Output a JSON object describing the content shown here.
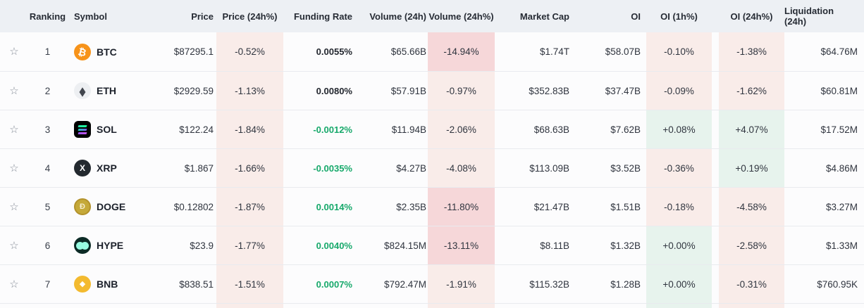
{
  "colors": {
    "header_bg": "#edf0f4",
    "row_bg": "#fcfcfd",
    "separator": "#e9ebef",
    "cell_pink": "#f9ece9",
    "cell_pink_strong": "#f6d7d9",
    "cell_green": "#e7f3ed",
    "funding_green": "#17a96b",
    "text": "#30353f",
    "symbol_color": "#1c212b",
    "btc_orange": "#f7931a",
    "bnb_yellow": "#f3ba2f",
    "hype_mint": "#98fce2"
  },
  "icons": {
    "star": "☆",
    "btc": "₿",
    "eth": "◆",
    "sol": "",
    "xrp": "X",
    "doge": "Ð",
    "hype": "",
    "bnb": "◆"
  },
  "table": {
    "columns": [
      {
        "id": "ranking",
        "label": "Ranking"
      },
      {
        "id": "symbol",
        "label": "Symbol"
      },
      {
        "id": "price",
        "label": "Price"
      },
      {
        "id": "price_24h_pct",
        "label": "Price (24h%)"
      },
      {
        "id": "funding_rate",
        "label": "Funding Rate"
      },
      {
        "id": "volume_24h",
        "label": "Volume (24h)"
      },
      {
        "id": "volume_24h_pct",
        "label": "Volume (24h%)"
      },
      {
        "id": "market_cap",
        "label": "Market Cap"
      },
      {
        "id": "oi",
        "label": "OI"
      },
      {
        "id": "oi_1h_pct",
        "label": "OI (1h%)"
      },
      {
        "id": "oi_24h_pct",
        "label": "OI (24h%)"
      },
      {
        "id": "liquidation_24h",
        "label": "Liquidation (24h)"
      }
    ],
    "rows": [
      {
        "id": "btc",
        "ranking": "1",
        "symbol": "BTC",
        "price": "$87295.1",
        "price_24h_pct": {
          "text": "-0.52%",
          "bg": "pink"
        },
        "funding_rate": {
          "text": "0.0055%",
          "color": "dark"
        },
        "volume_24h": "$65.66B",
        "volume_24h_pct": {
          "text": "-14.94%",
          "bg": "pink2"
        },
        "market_cap": "$1.74T",
        "oi": "$58.07B",
        "oi_1h_pct": {
          "text": "-0.10%",
          "bg": "pink"
        },
        "oi_24h_pct": {
          "text": "-1.38%",
          "bg": "pink"
        },
        "liquidation_24h": "$64.76M"
      },
      {
        "id": "eth",
        "ranking": "2",
        "symbol": "ETH",
        "price": "$2929.59",
        "price_24h_pct": {
          "text": "-1.13%",
          "bg": "pink"
        },
        "funding_rate": {
          "text": "0.0080%",
          "color": "dark"
        },
        "volume_24h": "$57.91B",
        "volume_24h_pct": {
          "text": "-0.97%",
          "bg": "pink"
        },
        "market_cap": "$352.83B",
        "oi": "$37.47B",
        "oi_1h_pct": {
          "text": "-0.09%",
          "bg": "pink"
        },
        "oi_24h_pct": {
          "text": "-1.62%",
          "bg": "pink"
        },
        "liquidation_24h": "$60.81M"
      },
      {
        "id": "sol",
        "ranking": "3",
        "symbol": "SOL",
        "price": "$122.24",
        "price_24h_pct": {
          "text": "-1.84%",
          "bg": "pink"
        },
        "funding_rate": {
          "text": "-0.0012%",
          "color": "green"
        },
        "volume_24h": "$11.94B",
        "volume_24h_pct": {
          "text": "-2.06%",
          "bg": "pink"
        },
        "market_cap": "$68.63B",
        "oi": "$7.62B",
        "oi_1h_pct": {
          "text": "+0.08%",
          "bg": "green"
        },
        "oi_24h_pct": {
          "text": "+4.07%",
          "bg": "green"
        },
        "liquidation_24h": "$17.52M"
      },
      {
        "id": "xrp",
        "ranking": "4",
        "symbol": "XRP",
        "price": "$1.867",
        "price_24h_pct": {
          "text": "-1.66%",
          "bg": "pink"
        },
        "funding_rate": {
          "text": "-0.0035%",
          "color": "green"
        },
        "volume_24h": "$4.27B",
        "volume_24h_pct": {
          "text": "-4.08%",
          "bg": "pink"
        },
        "market_cap": "$113.09B",
        "oi": "$3.52B",
        "oi_1h_pct": {
          "text": "-0.36%",
          "bg": "pink"
        },
        "oi_24h_pct": {
          "text": "+0.19%",
          "bg": "green"
        },
        "liquidation_24h": "$4.86M"
      },
      {
        "id": "doge",
        "ranking": "5",
        "symbol": "DOGE",
        "price": "$0.12802",
        "price_24h_pct": {
          "text": "-1.87%",
          "bg": "pink"
        },
        "funding_rate": {
          "text": "0.0014%",
          "color": "green"
        },
        "volume_24h": "$2.35B",
        "volume_24h_pct": {
          "text": "-11.80%",
          "bg": "pink2"
        },
        "market_cap": "$21.47B",
        "oi": "$1.51B",
        "oi_1h_pct": {
          "text": "-0.18%",
          "bg": "pink"
        },
        "oi_24h_pct": {
          "text": "-4.58%",
          "bg": "pink"
        },
        "liquidation_24h": "$3.27M"
      },
      {
        "id": "hype",
        "ranking": "6",
        "symbol": "HYPE",
        "price": "$23.9",
        "price_24h_pct": {
          "text": "-1.77%",
          "bg": "pink"
        },
        "funding_rate": {
          "text": "0.0040%",
          "color": "green"
        },
        "volume_24h": "$824.15M",
        "volume_24h_pct": {
          "text": "-13.11%",
          "bg": "pink2"
        },
        "market_cap": "$8.11B",
        "oi": "$1.32B",
        "oi_1h_pct": {
          "text": "+0.00%",
          "bg": "green"
        },
        "oi_24h_pct": {
          "text": "-2.58%",
          "bg": "pink"
        },
        "liquidation_24h": "$1.33M"
      },
      {
        "id": "bnb",
        "ranking": "7",
        "symbol": "BNB",
        "price": "$838.51",
        "price_24h_pct": {
          "text": "-1.51%",
          "bg": "pink"
        },
        "funding_rate": {
          "text": "0.0007%",
          "color": "green"
        },
        "volume_24h": "$792.47M",
        "volume_24h_pct": {
          "text": "-1.91%",
          "bg": "pink"
        },
        "market_cap": "$115.32B",
        "oi": "$1.28B",
        "oi_1h_pct": {
          "text": "+0.00%",
          "bg": "green"
        },
        "oi_24h_pct": {
          "text": "-0.31%",
          "bg": "pink"
        },
        "liquidation_24h": "$760.95K"
      }
    ],
    "partial_row": {
      "price_24h_bg": "pink",
      "volume_24h_bg": "pink",
      "oi_1h_bg": "green",
      "oi_24h_bg": "pink"
    }
  }
}
